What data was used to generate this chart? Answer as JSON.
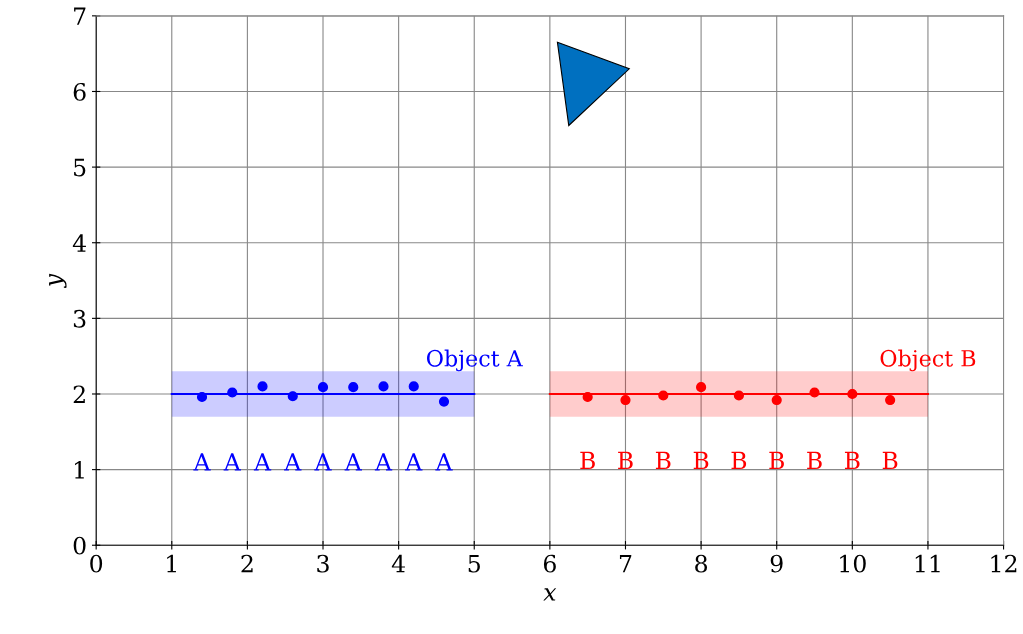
{
  "chart_data": {
    "type": "scatter",
    "xlabel": "x",
    "ylabel": "y",
    "xlim": [
      0,
      12
    ],
    "ylim": [
      0,
      7
    ],
    "xticks": [
      0,
      1,
      2,
      3,
      4,
      5,
      6,
      7,
      8,
      9,
      10,
      11,
      12
    ],
    "yticks": [
      0,
      1,
      2,
      3,
      4,
      5,
      6,
      7
    ],
    "grid": true,
    "marker": "circle",
    "series": [
      {
        "type": "line",
        "color": "#0000ff",
        "x": [
          1,
          5
        ],
        "values": [
          2,
          2
        ],
        "lower": [
          1.7,
          1.7
        ],
        "upper": [
          2.3,
          2.3
        ],
        "marker": "none"
      },
      {
        "type": "line",
        "color": "#ff0000",
        "x": [
          6,
          11
        ],
        "values": [
          2,
          2
        ],
        "lower": [
          1.7,
          1.7
        ],
        "upper": [
          2.3,
          2.3
        ],
        "marker": "none"
      },
      {
        "color": "#0000ff",
        "x": [
          1.4,
          1.8,
          2.2,
          2.6,
          3.0,
          3.4,
          3.8,
          4.2,
          4.6
        ],
        "values": [
          1.96,
          2.02,
          2.1,
          1.97,
          2.09,
          2.09,
          2.1,
          2.1,
          1.9
        ],
        "value_labels": [
          "A",
          "A",
          "A",
          "A",
          "A",
          "A",
          "A",
          "A",
          "A"
        ]
      },
      {
        "color": "#ff0000",
        "x": [
          6.5,
          7,
          7.5,
          8,
          8.5,
          9,
          9.5,
          10,
          10.5
        ],
        "values": [
          1.96,
          1.92,
          1.98,
          2.09,
          1.98,
          1.92,
          2.02,
          2.0,
          1.92
        ],
        "value_labels": [
          "B",
          "B",
          "B",
          "B",
          "B",
          "B",
          "B",
          "B",
          "B"
        ]
      }
    ],
    "annotations": [
      {
        "text": "Object A",
        "x": 5,
        "y": 2.3
      },
      {
        "text": "Object B",
        "x": 11,
        "y": 2.3
      }
    ]
  }
}
